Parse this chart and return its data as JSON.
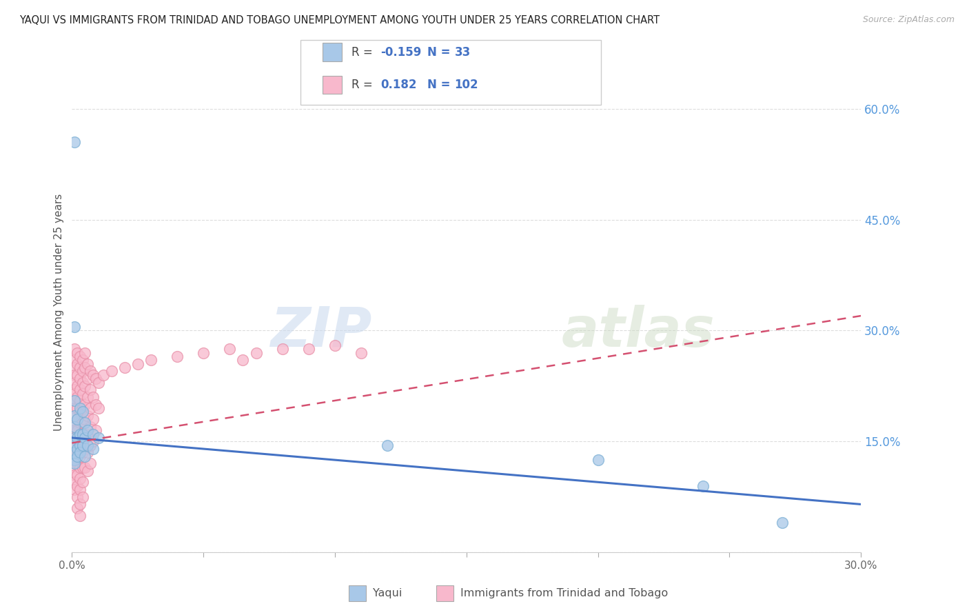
{
  "title": "YAQUI VS IMMIGRANTS FROM TRINIDAD AND TOBAGO UNEMPLOYMENT AMONG YOUTH UNDER 25 YEARS CORRELATION CHART",
  "source": "Source: ZipAtlas.com",
  "ylabel": "Unemployment Among Youth under 25 years",
  "xlim": [
    0.0,
    0.3
  ],
  "ylim": [
    0.0,
    0.65
  ],
  "yticks": [
    0.0,
    0.15,
    0.3,
    0.45,
    0.6
  ],
  "ytick_labels": [
    "",
    "15.0%",
    "30.0%",
    "45.0%",
    "60.0%"
  ],
  "xticks": [
    0.0,
    0.05,
    0.1,
    0.15,
    0.2,
    0.25,
    0.3
  ],
  "xtick_labels": [
    "0.0%",
    "",
    "",
    "",
    "",
    "",
    "30.0%"
  ],
  "yaqui_color": "#a8c8e8",
  "yaqui_edge_color": "#7bafd4",
  "tt_color": "#f8b8cc",
  "tt_edge_color": "#e890a8",
  "yaqui_line_color": "#4472c4",
  "tt_line_color": "#d45070",
  "watermark": "ZIPatlas",
  "background_color": "#ffffff",
  "grid_color": "#dddddd",
  "title_color": "#222222",
  "axis_label_color": "#555555",
  "right_tick_color": "#5599dd",
  "legend_text_color": "#4472c4",
  "legend_label_color": "#333333",
  "yaqui_points": [
    [
      0.001,
      0.555
    ],
    [
      0.001,
      0.305
    ],
    [
      0.001,
      0.205
    ],
    [
      0.001,
      0.185
    ],
    [
      0.001,
      0.17
    ],
    [
      0.001,
      0.155
    ],
    [
      0.001,
      0.145
    ],
    [
      0.001,
      0.135
    ],
    [
      0.001,
      0.125
    ],
    [
      0.001,
      0.12
    ],
    [
      0.002,
      0.18
    ],
    [
      0.002,
      0.155
    ],
    [
      0.002,
      0.14
    ],
    [
      0.002,
      0.13
    ],
    [
      0.003,
      0.195
    ],
    [
      0.003,
      0.16
    ],
    [
      0.003,
      0.145
    ],
    [
      0.003,
      0.135
    ],
    [
      0.004,
      0.19
    ],
    [
      0.004,
      0.16
    ],
    [
      0.004,
      0.145
    ],
    [
      0.005,
      0.175
    ],
    [
      0.005,
      0.155
    ],
    [
      0.005,
      0.13
    ],
    [
      0.006,
      0.165
    ],
    [
      0.006,
      0.145
    ],
    [
      0.008,
      0.16
    ],
    [
      0.008,
      0.14
    ],
    [
      0.01,
      0.155
    ],
    [
      0.12,
      0.145
    ],
    [
      0.2,
      0.125
    ],
    [
      0.24,
      0.09
    ],
    [
      0.27,
      0.04
    ]
  ],
  "tt_points": [
    [
      0.001,
      0.275
    ],
    [
      0.001,
      0.26
    ],
    [
      0.001,
      0.25
    ],
    [
      0.001,
      0.24
    ],
    [
      0.001,
      0.23
    ],
    [
      0.001,
      0.22
    ],
    [
      0.001,
      0.215
    ],
    [
      0.001,
      0.205
    ],
    [
      0.001,
      0.195
    ],
    [
      0.001,
      0.185
    ],
    [
      0.001,
      0.175
    ],
    [
      0.001,
      0.165
    ],
    [
      0.001,
      0.155
    ],
    [
      0.001,
      0.145
    ],
    [
      0.001,
      0.135
    ],
    [
      0.001,
      0.125
    ],
    [
      0.001,
      0.115
    ],
    [
      0.001,
      0.105
    ],
    [
      0.001,
      0.095
    ],
    [
      0.001,
      0.085
    ],
    [
      0.002,
      0.27
    ],
    [
      0.002,
      0.255
    ],
    [
      0.002,
      0.24
    ],
    [
      0.002,
      0.225
    ],
    [
      0.002,
      0.21
    ],
    [
      0.002,
      0.195
    ],
    [
      0.002,
      0.18
    ],
    [
      0.002,
      0.165
    ],
    [
      0.002,
      0.15
    ],
    [
      0.002,
      0.135
    ],
    [
      0.002,
      0.12
    ],
    [
      0.002,
      0.105
    ],
    [
      0.002,
      0.09
    ],
    [
      0.002,
      0.075
    ],
    [
      0.002,
      0.06
    ],
    [
      0.003,
      0.265
    ],
    [
      0.003,
      0.25
    ],
    [
      0.003,
      0.235
    ],
    [
      0.003,
      0.22
    ],
    [
      0.003,
      0.205
    ],
    [
      0.003,
      0.19
    ],
    [
      0.003,
      0.175
    ],
    [
      0.003,
      0.16
    ],
    [
      0.003,
      0.145
    ],
    [
      0.003,
      0.13
    ],
    [
      0.003,
      0.115
    ],
    [
      0.003,
      0.1
    ],
    [
      0.003,
      0.085
    ],
    [
      0.003,
      0.065
    ],
    [
      0.003,
      0.05
    ],
    [
      0.004,
      0.26
    ],
    [
      0.004,
      0.245
    ],
    [
      0.004,
      0.23
    ],
    [
      0.004,
      0.215
    ],
    [
      0.004,
      0.195
    ],
    [
      0.004,
      0.175
    ],
    [
      0.004,
      0.155
    ],
    [
      0.004,
      0.135
    ],
    [
      0.004,
      0.115
    ],
    [
      0.004,
      0.095
    ],
    [
      0.004,
      0.075
    ],
    [
      0.005,
      0.27
    ],
    [
      0.005,
      0.25
    ],
    [
      0.005,
      0.225
    ],
    [
      0.005,
      0.2
    ],
    [
      0.005,
      0.18
    ],
    [
      0.005,
      0.16
    ],
    [
      0.005,
      0.14
    ],
    [
      0.005,
      0.115
    ],
    [
      0.006,
      0.255
    ],
    [
      0.006,
      0.235
    ],
    [
      0.006,
      0.21
    ],
    [
      0.006,
      0.185
    ],
    [
      0.006,
      0.16
    ],
    [
      0.006,
      0.135
    ],
    [
      0.006,
      0.11
    ],
    [
      0.007,
      0.245
    ],
    [
      0.007,
      0.22
    ],
    [
      0.007,
      0.195
    ],
    [
      0.007,
      0.17
    ],
    [
      0.007,
      0.145
    ],
    [
      0.007,
      0.12
    ],
    [
      0.008,
      0.24
    ],
    [
      0.008,
      0.21
    ],
    [
      0.008,
      0.18
    ],
    [
      0.008,
      0.15
    ],
    [
      0.009,
      0.235
    ],
    [
      0.009,
      0.2
    ],
    [
      0.009,
      0.165
    ],
    [
      0.01,
      0.23
    ],
    [
      0.01,
      0.195
    ],
    [
      0.012,
      0.24
    ],
    [
      0.015,
      0.245
    ],
    [
      0.02,
      0.25
    ],
    [
      0.025,
      0.255
    ],
    [
      0.03,
      0.26
    ],
    [
      0.04,
      0.265
    ],
    [
      0.05,
      0.27
    ],
    [
      0.06,
      0.275
    ],
    [
      0.065,
      0.26
    ],
    [
      0.07,
      0.27
    ],
    [
      0.08,
      0.275
    ],
    [
      0.09,
      0.275
    ],
    [
      0.1,
      0.28
    ],
    [
      0.11,
      0.27
    ]
  ]
}
